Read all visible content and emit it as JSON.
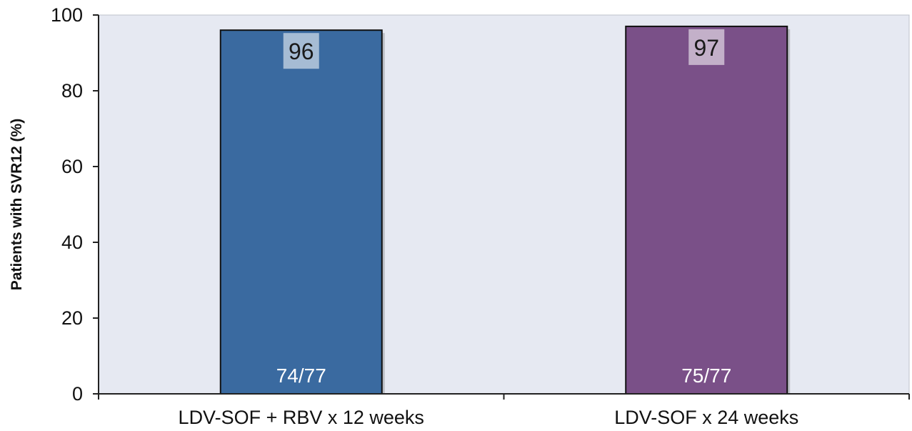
{
  "chart_data": {
    "type": "bar",
    "title": "",
    "xlabel": "",
    "ylabel": "Patients with SVR12 (%)",
    "ylim": [
      0,
      100
    ],
    "yticks": [
      0,
      20,
      40,
      60,
      80,
      100
    ],
    "grid": false,
    "categories": [
      "LDV-SOF + RBV x 12 weeks",
      "LDV-SOF x 24 weeks"
    ],
    "values": [
      96,
      97
    ],
    "value_labels": [
      "96",
      "97"
    ],
    "count_labels": [
      "74/77",
      "75/77"
    ],
    "colors": [
      "#3a6aa0",
      "#7a5088"
    ],
    "plot_background": "#e6e9f2"
  }
}
